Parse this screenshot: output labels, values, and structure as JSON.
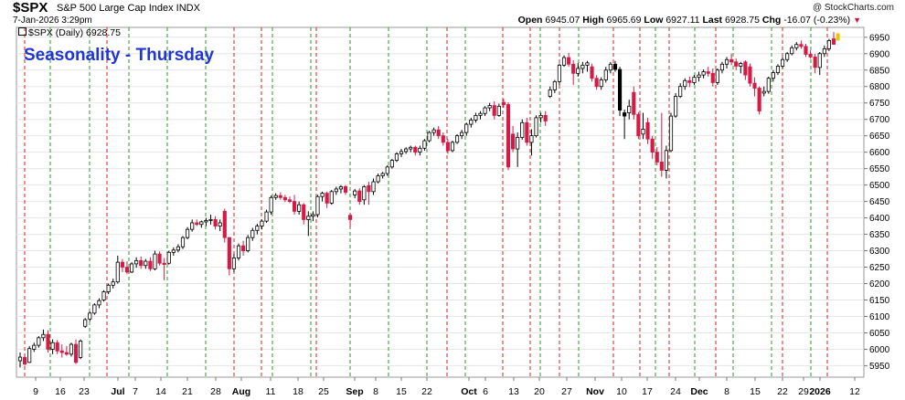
{
  "header": {
    "ticker": "$SPX",
    "description": "S&P 500 Large Cap Index INDX",
    "datetime": "7-Jan-2026 3:29pm",
    "credit": "@ StockCharts.com",
    "ohlc": {
      "open_label": "Open",
      "open": "6945.07",
      "high_label": "High",
      "high": "6965.69",
      "low_label": "Low",
      "low": "6927.11",
      "last_label": "Last",
      "last": "6928.75",
      "chg_label": "Chg",
      "chg": "-16.07 (-0.23%)",
      "chg_arrow": "▼"
    }
  },
  "legend": {
    "label": "$SPX (Daily) 6928.75"
  },
  "colors": {
    "up": "#ffffff",
    "down": "#d61a46",
    "neutral": "#000000",
    "title": "#1f35d6",
    "green_line": "#2a9a2a",
    "red_line": "#d62020",
    "last_marker": "#e8c800"
  },
  "chart_data": {
    "type": "candlestick",
    "title": "Seasonality - Thursday",
    "y_axis": {
      "ticks": [
        5950,
        6000,
        6050,
        6100,
        6150,
        6200,
        6250,
        6300,
        6350,
        6400,
        6450,
        6500,
        6550,
        6600,
        6650,
        6700,
        6750,
        6800,
        6850,
        6900,
        6950
      ],
      "range": [
        5915,
        6980
      ],
      "position": "right"
    },
    "x_axis": {
      "tick_labels": [
        "9",
        "16",
        "23",
        "Jul",
        "7",
        "14",
        "21",
        "28",
        "Aug",
        "11",
        "18",
        "25",
        "Sep",
        "8",
        "15",
        "22",
        "Oct",
        "6",
        "13",
        "20",
        "27",
        "Nov",
        "10",
        "17",
        "24",
        "Dec",
        "8",
        "15",
        "22",
        "29",
        "2026",
        "12"
      ],
      "bold_labels": [
        "Jul",
        "Aug",
        "Sep",
        "Oct",
        "Nov",
        "Dec",
        "2026"
      ],
      "start_date": "2025-06-06",
      "end_date": "2026-01-14"
    },
    "vertical_lines": {
      "green_dashed": "weekly marker (Thursdays)",
      "red_dashed": "monthly marker"
    },
    "key_levels": {
      "start_close": 5975,
      "mid_june_low": 5950,
      "late_june_cross_6100": 6100,
      "early_aug_low": 6230,
      "mid_sept": 6600,
      "early_oct_peak": 6750,
      "oct_10_low": 6550,
      "late_oct_peak": 6890,
      "nov_20_low": 6530,
      "dec_peak": 6900,
      "mid_dec_low": 6720,
      "late_dec_high": 6940,
      "last": 6928.75
    },
    "candles": [
      {
        "o": 5965,
        "h": 5990,
        "l": 5945,
        "c": 5976
      },
      {
        "o": 5975,
        "h": 5985,
        "l": 5950,
        "c": 5955
      },
      {
        "o": 5960,
        "h": 6010,
        "l": 5958,
        "c": 6002
      },
      {
        "o": 6000,
        "h": 6020,
        "l": 5992,
        "c": 6012
      },
      {
        "o": 6012,
        "h": 6040,
        "l": 6005,
        "c": 6035
      },
      {
        "o": 6035,
        "h": 6060,
        "l": 6025,
        "c": 6045
      },
      {
        "o": 6045,
        "h": 6058,
        "l": 5990,
        "c": 6000
      },
      {
        "o": 6000,
        "h": 6030,
        "l": 5985,
        "c": 6020
      },
      {
        "o": 6020,
        "h": 6028,
        "l": 5985,
        "c": 5995
      },
      {
        "o": 5995,
        "h": 6015,
        "l": 5975,
        "c": 5990
      },
      {
        "o": 5990,
        "h": 6010,
        "l": 5980,
        "c": 5985
      },
      {
        "o": 5985,
        "h": 6020,
        "l": 5978,
        "c": 6015
      },
      {
        "o": 6015,
        "h": 6030,
        "l": 5955,
        "c": 5960
      },
      {
        "o": 5975,
        "h": 6030,
        "l": 5970,
        "c": 6025
      },
      {
        "o": 6070,
        "h": 6095,
        "l": 6065,
        "c": 6090
      },
      {
        "o": 6092,
        "h": 6115,
        "l": 6085,
        "c": 6110
      },
      {
        "o": 6110,
        "h": 6140,
        "l": 6105,
        "c": 6135
      },
      {
        "o": 6135,
        "h": 6155,
        "l": 6125,
        "c": 6148
      },
      {
        "o": 6150,
        "h": 6180,
        "l": 6145,
        "c": 6175
      },
      {
        "o": 6175,
        "h": 6200,
        "l": 6168,
        "c": 6195
      },
      {
        "o": 6195,
        "h": 6215,
        "l": 6185,
        "c": 6205
      },
      {
        "o": 6205,
        "h": 6285,
        "l": 6200,
        "c": 6265
      },
      {
        "o": 6265,
        "h": 6275,
        "l": 6235,
        "c": 6250
      },
      {
        "o": 6250,
        "h": 6268,
        "l": 6228,
        "c": 6235
      },
      {
        "o": 6235,
        "h": 6265,
        "l": 6232,
        "c": 6260
      },
      {
        "o": 6260,
        "h": 6280,
        "l": 6248,
        "c": 6270
      },
      {
        "o": 6270,
        "h": 6282,
        "l": 6245,
        "c": 6255
      },
      {
        "o": 6255,
        "h": 6275,
        "l": 6245,
        "c": 6268
      },
      {
        "o": 6268,
        "h": 6280,
        "l": 6238,
        "c": 6245
      },
      {
        "o": 6245,
        "h": 6300,
        "l": 6240,
        "c": 6290
      },
      {
        "o": 6290,
        "h": 6298,
        "l": 6255,
        "c": 6262
      },
      {
        "o": 6262,
        "h": 6278,
        "l": 6210,
        "c": 6258
      },
      {
        "o": 6262,
        "h": 6300,
        "l": 6258,
        "c": 6295
      },
      {
        "o": 6295,
        "h": 6310,
        "l": 6285,
        "c": 6302
      },
      {
        "o": 6302,
        "h": 6320,
        "l": 6295,
        "c": 6312
      },
      {
        "o": 6312,
        "h": 6345,
        "l": 6305,
        "c": 6340
      },
      {
        "o": 6340,
        "h": 6372,
        "l": 6335,
        "c": 6365
      },
      {
        "o": 6365,
        "h": 6395,
        "l": 6358,
        "c": 6385
      },
      {
        "o": 6385,
        "h": 6395,
        "l": 6375,
        "c": 6380
      },
      {
        "o": 6380,
        "h": 6392,
        "l": 6370,
        "c": 6388
      },
      {
        "o": 6388,
        "h": 6400,
        "l": 6375,
        "c": 6392
      },
      {
        "o": 6392,
        "h": 6410,
        "l": 6380,
        "c": 6395
      },
      {
        "o": 6395,
        "h": 6405,
        "l": 6365,
        "c": 6375
      },
      {
        "o": 6375,
        "h": 6395,
        "l": 6360,
        "c": 6385
      },
      {
        "o": 6420,
        "h": 6428,
        "l": 6325,
        "c": 6340
      },
      {
        "o": 6340,
        "h": 6342,
        "l": 6225,
        "c": 6245
      },
      {
        "o": 6245,
        "h": 6290,
        "l": 6235,
        "c": 6278
      },
      {
        "o": 6278,
        "h": 6322,
        "l": 6270,
        "c": 6315
      },
      {
        "o": 6315,
        "h": 6330,
        "l": 6285,
        "c": 6300
      },
      {
        "o": 6300,
        "h": 6348,
        "l": 6295,
        "c": 6340
      },
      {
        "o": 6340,
        "h": 6370,
        "l": 6330,
        "c": 6362
      },
      {
        "o": 6362,
        "h": 6382,
        "l": 6350,
        "c": 6375
      },
      {
        "o": 6375,
        "h": 6395,
        "l": 6365,
        "c": 6390
      },
      {
        "o": 6390,
        "h": 6425,
        "l": 6385,
        "c": 6418
      },
      {
        "o": 6418,
        "h": 6468,
        "l": 6410,
        "c": 6462
      },
      {
        "o": 6462,
        "h": 6475,
        "l": 6455,
        "c": 6468
      },
      {
        "o": 6468,
        "h": 6478,
        "l": 6455,
        "c": 6462
      },
      {
        "o": 6462,
        "h": 6470,
        "l": 6448,
        "c": 6455
      },
      {
        "o": 6455,
        "h": 6465,
        "l": 6445,
        "c": 6450
      },
      {
        "o": 6450,
        "h": 6470,
        "l": 6410,
        "c": 6420
      },
      {
        "o": 6420,
        "h": 6450,
        "l": 6410,
        "c": 6440
      },
      {
        "o": 6440,
        "h": 6445,
        "l": 6380,
        "c": 6395
      },
      {
        "o": 6395,
        "h": 6420,
        "l": 6345,
        "c": 6405
      },
      {
        "o": 6405,
        "h": 6420,
        "l": 6390,
        "c": 6410
      },
      {
        "o": 6410,
        "h": 6470,
        "l": 6402,
        "c": 6465
      },
      {
        "o": 6465,
        "h": 6480,
        "l": 6450,
        "c": 6475
      },
      {
        "o": 6475,
        "h": 6480,
        "l": 6430,
        "c": 6445
      },
      {
        "o": 6445,
        "h": 6485,
        "l": 6440,
        "c": 6480
      },
      {
        "o": 6480,
        "h": 6495,
        "l": 6470,
        "c": 6488
      },
      {
        "o": 6488,
        "h": 6500,
        "l": 6475,
        "c": 6495
      },
      {
        "o": 6495,
        "h": 6500,
        "l": 6470,
        "c": 6478
      },
      {
        "o": 6408,
        "h": 6415,
        "l": 6370,
        "c": 6395
      },
      {
        "o": 6470,
        "h": 6488,
        "l": 6460,
        "c": 6482
      },
      {
        "o": 6482,
        "h": 6490,
        "l": 6440,
        "c": 6450
      },
      {
        "o": 6455,
        "h": 6500,
        "l": 6440,
        "c": 6495
      },
      {
        "o": 6498,
        "h": 6510,
        "l": 6440,
        "c": 6480
      },
      {
        "o": 6480,
        "h": 6520,
        "l": 6470,
        "c": 6510
      },
      {
        "o": 6510,
        "h": 6535,
        "l": 6505,
        "c": 6528
      },
      {
        "o": 6528,
        "h": 6540,
        "l": 6520,
        "c": 6535
      },
      {
        "o": 6535,
        "h": 6560,
        "l": 6528,
        "c": 6555
      },
      {
        "o": 6555,
        "h": 6580,
        "l": 6550,
        "c": 6575
      },
      {
        "o": 6575,
        "h": 6600,
        "l": 6570,
        "c": 6595
      },
      {
        "o": 6595,
        "h": 6610,
        "l": 6585,
        "c": 6602
      },
      {
        "o": 6602,
        "h": 6615,
        "l": 6595,
        "c": 6610
      },
      {
        "o": 6610,
        "h": 6620,
        "l": 6600,
        "c": 6615
      },
      {
        "o": 6615,
        "h": 6620,
        "l": 6590,
        "c": 6600
      },
      {
        "o": 6600,
        "h": 6620,
        "l": 6590,
        "c": 6612
      },
      {
        "o": 6612,
        "h": 6640,
        "l": 6605,
        "c": 6635
      },
      {
        "o": 6635,
        "h": 6665,
        "l": 6630,
        "c": 6660
      },
      {
        "o": 6660,
        "h": 6675,
        "l": 6650,
        "c": 6668
      },
      {
        "o": 6668,
        "h": 6680,
        "l": 6640,
        "c": 6650
      },
      {
        "o": 6650,
        "h": 6660,
        "l": 6620,
        "c": 6630
      },
      {
        "o": 6630,
        "h": 6640,
        "l": 6595,
        "c": 6605
      },
      {
        "o": 6605,
        "h": 6635,
        "l": 6600,
        "c": 6630
      },
      {
        "o": 6630,
        "h": 6655,
        "l": 6625,
        "c": 6650
      },
      {
        "o": 6650,
        "h": 6668,
        "l": 6640,
        "c": 6660
      },
      {
        "o": 6660,
        "h": 6690,
        "l": 6650,
        "c": 6685
      },
      {
        "o": 6685,
        "h": 6705,
        "l": 6675,
        "c": 6698
      },
      {
        "o": 6698,
        "h": 6720,
        "l": 6690,
        "c": 6712
      },
      {
        "o": 6712,
        "h": 6725,
        "l": 6700,
        "c": 6718
      },
      {
        "o": 6718,
        "h": 6740,
        "l": 6710,
        "c": 6735
      },
      {
        "o": 6735,
        "h": 6750,
        "l": 6725,
        "c": 6742
      },
      {
        "o": 6742,
        "h": 6755,
        "l": 6700,
        "c": 6712
      },
      {
        "o": 6712,
        "h": 6748,
        "l": 6708,
        "c": 6740
      },
      {
        "o": 6752,
        "h": 6762,
        "l": 6735,
        "c": 6745
      },
      {
        "o": 6745,
        "h": 6752,
        "l": 6545,
        "c": 6555
      },
      {
        "o": 6655,
        "h": 6680,
        "l": 6600,
        "c": 6610
      },
      {
        "o": 6610,
        "h": 6660,
        "l": 6555,
        "c": 6645
      },
      {
        "o": 6645,
        "h": 6700,
        "l": 6638,
        "c": 6690
      },
      {
        "o": 6690,
        "h": 6705,
        "l": 6620,
        "c": 6630
      },
      {
        "o": 6630,
        "h": 6670,
        "l": 6590,
        "c": 6650
      },
      {
        "o": 6650,
        "h": 6712,
        "l": 6645,
        "c": 6705
      },
      {
        "o": 6705,
        "h": 6720,
        "l": 6690,
        "c": 6712
      },
      {
        "o": 6712,
        "h": 6725,
        "l": 6680,
        "c": 6695
      },
      {
        "o": 6770,
        "h": 6800,
        "l": 6765,
        "c": 6790
      },
      {
        "o": 6790,
        "h": 6820,
        "l": 6780,
        "c": 6815
      },
      {
        "o": 6815,
        "h": 6870,
        "l": 6805,
        "c": 6865
      },
      {
        "o": 6865,
        "h": 6895,
        "l": 6860,
        "c": 6888
      },
      {
        "o": 6888,
        "h": 6902,
        "l": 6860,
        "c": 6868
      },
      {
        "o": 6868,
        "h": 6880,
        "l": 6805,
        "c": 6840
      },
      {
        "o": 6840,
        "h": 6872,
        "l": 6830,
        "c": 6855
      },
      {
        "o": 6855,
        "h": 6875,
        "l": 6840,
        "c": 6865
      },
      {
        "o": 6865,
        "h": 6878,
        "l": 6845,
        "c": 6872
      },
      {
        "o": 6860,
        "h": 6870,
        "l": 6815,
        "c": 6825
      },
      {
        "o": 6825,
        "h": 6835,
        "l": 6790,
        "c": 6800
      },
      {
        "o": 6800,
        "h": 6828,
        "l": 6790,
        "c": 6820
      },
      {
        "o": 6820,
        "h": 6860,
        "l": 6812,
        "c": 6850
      },
      {
        "o": 6850,
        "h": 6875,
        "l": 6840,
        "c": 6868
      },
      {
        "o": 6868,
        "h": 6878,
        "l": 6845,
        "c": 6852
      },
      {
        "o": 6852,
        "h": 6860,
        "l": 6710,
        "c": 6728
      },
      {
        "o": 6710,
        "h": 6730,
        "l": 6640,
        "c": 6720
      },
      {
        "o": 6720,
        "h": 6760,
        "l": 6700,
        "c": 6740
      },
      {
        "o": 6782,
        "h": 6800,
        "l": 6700,
        "c": 6715
      },
      {
        "o": 6715,
        "h": 6722,
        "l": 6640,
        "c": 6650
      },
      {
        "o": 6655,
        "h": 6720,
        "l": 6640,
        "c": 6670
      },
      {
        "o": 6690,
        "h": 6705,
        "l": 6625,
        "c": 6640
      },
      {
        "o": 6640,
        "h": 6650,
        "l": 6580,
        "c": 6600
      },
      {
        "o": 6600,
        "h": 6615,
        "l": 6560,
        "c": 6570
      },
      {
        "o": 6570,
        "h": 6720,
        "l": 6525,
        "c": 6545
      },
      {
        "o": 6545,
        "h": 6620,
        "l": 6520,
        "c": 6605
      },
      {
        "o": 6605,
        "h": 6720,
        "l": 6600,
        "c": 6710
      },
      {
        "o": 6710,
        "h": 6780,
        "l": 6705,
        "c": 6770
      },
      {
        "o": 6770,
        "h": 6810,
        "l": 6765,
        "c": 6800
      },
      {
        "o": 6800,
        "h": 6825,
        "l": 6790,
        "c": 6818
      },
      {
        "o": 6818,
        "h": 6830,
        "l": 6798,
        "c": 6812
      },
      {
        "o": 6812,
        "h": 6835,
        "l": 6805,
        "c": 6828
      },
      {
        "o": 6828,
        "h": 6845,
        "l": 6815,
        "c": 6835
      },
      {
        "o": 6835,
        "h": 6852,
        "l": 6825,
        "c": 6845
      },
      {
        "o": 6845,
        "h": 6860,
        "l": 6830,
        "c": 6840
      },
      {
        "o": 6840,
        "h": 6855,
        "l": 6800,
        "c": 6812
      },
      {
        "o": 6812,
        "h": 6855,
        "l": 6805,
        "c": 6850
      },
      {
        "o": 6850,
        "h": 6875,
        "l": 6840,
        "c": 6868
      },
      {
        "o": 6868,
        "h": 6890,
        "l": 6855,
        "c": 6882
      },
      {
        "o": 6882,
        "h": 6900,
        "l": 6865,
        "c": 6875
      },
      {
        "o": 6875,
        "h": 6885,
        "l": 6850,
        "c": 6862
      },
      {
        "o": 6862,
        "h": 6875,
        "l": 6840,
        "c": 6870
      },
      {
        "o": 6875,
        "h": 6880,
        "l": 6820,
        "c": 6835
      },
      {
        "o": 6860,
        "h": 6870,
        "l": 6800,
        "c": 6810
      },
      {
        "o": 6810,
        "h": 6828,
        "l": 6770,
        "c": 6795
      },
      {
        "o": 6795,
        "h": 6800,
        "l": 6715,
        "c": 6725
      },
      {
        "o": 6780,
        "h": 6800,
        "l": 6770,
        "c": 6785
      },
      {
        "o": 6785,
        "h": 6830,
        "l": 6778,
        "c": 6825
      },
      {
        "o": 6825,
        "h": 6850,
        "l": 6815,
        "c": 6842
      },
      {
        "o": 6842,
        "h": 6868,
        "l": 6835,
        "c": 6862
      },
      {
        "o": 6862,
        "h": 6890,
        "l": 6855,
        "c": 6882
      },
      {
        "o": 6882,
        "h": 6905,
        "l": 6875,
        "c": 6900
      },
      {
        "o": 6900,
        "h": 6925,
        "l": 6895,
        "c": 6918
      },
      {
        "o": 6918,
        "h": 6935,
        "l": 6910,
        "c": 6928
      },
      {
        "o": 6928,
        "h": 6940,
        "l": 6915,
        "c": 6922
      },
      {
        "o": 6922,
        "h": 6930,
        "l": 6890,
        "c": 6898
      },
      {
        "o": 6898,
        "h": 6910,
        "l": 6885,
        "c": 6890
      },
      {
        "o": 6890,
        "h": 6900,
        "l": 6840,
        "c": 6858
      },
      {
        "o": 6858,
        "h": 6905,
        "l": 6835,
        "c": 6900
      },
      {
        "o": 6900,
        "h": 6925,
        "l": 6890,
        "c": 6915
      },
      {
        "o": 6915,
        "h": 6945,
        "l": 6908,
        "c": 6940
      },
      {
        "o": 6945.07,
        "h": 6965.69,
        "l": 6927.11,
        "c": 6928.75
      }
    ]
  }
}
